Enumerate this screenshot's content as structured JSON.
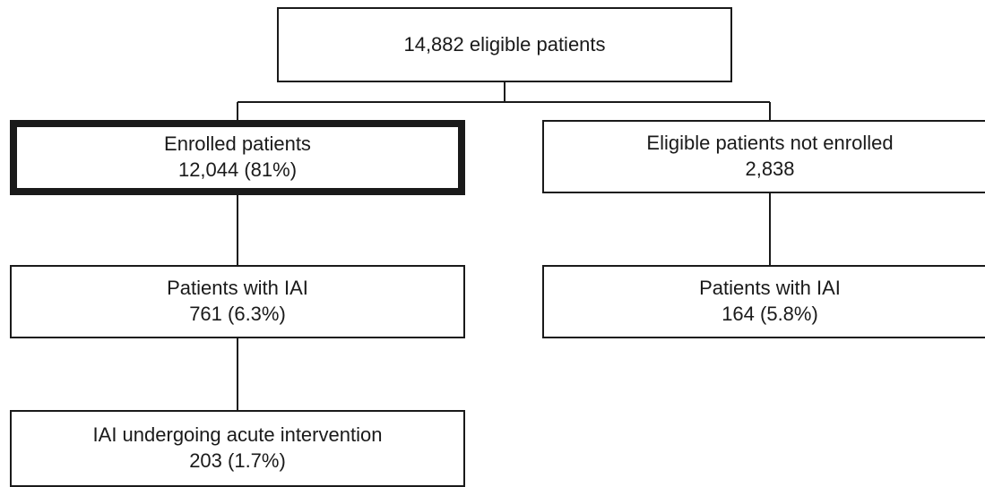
{
  "colors": {
    "stroke": "#1a1a1a",
    "background": "#ffffff"
  },
  "nodes": {
    "eligible": {
      "lines": [
        "14,882 eligible patients"
      ]
    },
    "enrolled": {
      "lines": [
        "Enrolled patients",
        "12,044 (81%)"
      ],
      "emphasized": true
    },
    "not_enrolled": {
      "lines": [
        "Eligible patients not enrolled",
        "2,838"
      ]
    },
    "enrolled_iai": {
      "lines": [
        "Patients with IAI",
        "761 (6.3%)"
      ]
    },
    "not_enrolled_iai": {
      "lines": [
        "Patients  with IAI",
        "164 (5.8%)"
      ]
    },
    "acute_intervention": {
      "lines": [
        "IAI undergoing acute intervention",
        "203 (1.7%)"
      ]
    }
  }
}
